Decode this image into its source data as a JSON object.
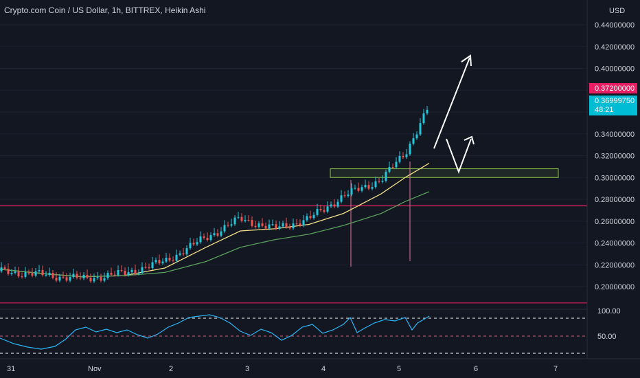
{
  "header": {
    "title": "Crypto.com Coin / US Dollar, 1h, BITTREX, Heikin Ashi"
  },
  "price_axis": {
    "currency": "USD",
    "ticks": [
      "0.44000000",
      "0.42000000",
      "0.40000000",
      "0.38000000",
      "0.36000000",
      "0.34000000",
      "0.32000000",
      "0.30000000",
      "0.28000000",
      "0.26000000",
      "0.24000000",
      "0.22000000",
      "0.20000000"
    ],
    "labels": {
      "high_price": "0.37200000",
      "last_price": "0.36999750",
      "countdown": "48:21"
    }
  },
  "time_axis": {
    "labels": [
      "31",
      "Nov",
      "2",
      "3",
      "4",
      "5",
      "6",
      "7"
    ]
  },
  "oscillator": {
    "ticks": [
      "100.00",
      "50.00"
    ]
  },
  "colors": {
    "background": "#131722",
    "up": "#26c6da",
    "down": "#ef5350",
    "ma_fast": "#f5e08a",
    "ma_slow": "#5aa05a",
    "hline": "#e91e63",
    "zone": "#8bc34a",
    "rsi": "#29b6f6"
  },
  "chart_data": {
    "type": "candlestick",
    "style": "Heikin Ashi",
    "x_axis": "date",
    "ylim": [
      0.19,
      0.46
    ],
    "candles": [
      {
        "x": "2021-10-31 00:00",
        "y": 0.214
      },
      {
        "x": "2021-10-31 12:00",
        "y": 0.211
      },
      {
        "x": "2021-11-01 00:00",
        "y": 0.207
      },
      {
        "x": "2021-11-01 12:00",
        "y": 0.212
      },
      {
        "x": "2021-11-02 00:00",
        "y": 0.223
      },
      {
        "x": "2021-11-02 12:00",
        "y": 0.245
      },
      {
        "x": "2021-11-03 00:00",
        "y": 0.262
      },
      {
        "x": "2021-11-03 12:00",
        "y": 0.253
      },
      {
        "x": "2021-11-04 00:00",
        "y": 0.262
      },
      {
        "x": "2021-11-04 12:00",
        "y": 0.283
      },
      {
        "x": "2021-11-05 00:00",
        "y": 0.298
      },
      {
        "x": "2021-11-05 06:00",
        "y": 0.322
      },
      {
        "x": "2021-11-05 10:00",
        "y": 0.366
      }
    ],
    "moving_averages": [
      {
        "color": "#f5e08a",
        "points": [
          0.216,
          0.212,
          0.209,
          0.21,
          0.217,
          0.236,
          0.251,
          0.253,
          0.257,
          0.267,
          0.285,
          0.3,
          0.313
        ]
      },
      {
        "color": "#5aa05a",
        "points": [
          0.216,
          0.212,
          0.209,
          0.21,
          0.213,
          0.223,
          0.236,
          0.243,
          0.248,
          0.256,
          0.267,
          0.278,
          0.287
        ]
      }
    ],
    "horizontal_lines": [
      0.274,
      0.185
    ],
    "zone": {
      "from": 0.3,
      "to": 0.308
    },
    "oscillator_levels": [
      100,
      50
    ]
  }
}
